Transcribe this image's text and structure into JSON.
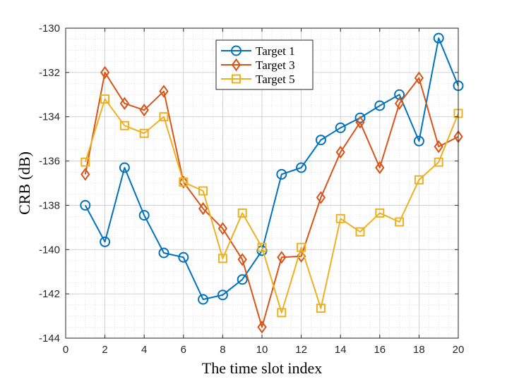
{
  "chart_data": {
    "type": "line",
    "title": "",
    "xlabel": "The time slot index",
    "ylabel": "CRB (dB)",
    "xlim": [
      0,
      20
    ],
    "ylim": [
      -144,
      -130
    ],
    "xticks": [
      0,
      2,
      4,
      6,
      8,
      10,
      12,
      14,
      16,
      18,
      20
    ],
    "yticks": [
      -144,
      -142,
      -140,
      -138,
      -136,
      -134,
      -132,
      -130
    ],
    "grid": true,
    "minor_grid": true,
    "legend_position": "top-center",
    "x": [
      1,
      2,
      3,
      4,
      5,
      6,
      7,
      8,
      9,
      10,
      11,
      12,
      13,
      14,
      15,
      16,
      17,
      18,
      19,
      20
    ],
    "series": [
      {
        "name": "Target 1",
        "color": "#0072BD",
        "marker": "circle",
        "values": [
          -138.0,
          -139.65,
          -136.3,
          -138.45,
          -140.15,
          -140.35,
          -142.25,
          -142.05,
          -141.35,
          -140.05,
          -136.6,
          -136.3,
          -135.05,
          -134.5,
          -134.05,
          -133.5,
          -133.0,
          -135.1,
          -130.45,
          -132.6
        ]
      },
      {
        "name": "Target 3",
        "color": "#D95319",
        "marker": "diamond",
        "values": [
          -136.6,
          -132.0,
          -133.4,
          -133.7,
          -132.85,
          -136.95,
          -138.15,
          -139.05,
          -140.45,
          -143.5,
          -140.35,
          -140.3,
          -137.65,
          -135.6,
          -134.25,
          -136.3,
          -133.4,
          -132.25,
          -135.35,
          -134.9
        ]
      },
      {
        "name": "Target 5",
        "color": "#EDB120",
        "marker": "square",
        "values": [
          -136.05,
          -133.2,
          -134.4,
          -134.75,
          -134.0,
          -136.95,
          -137.35,
          -140.4,
          -138.35,
          -139.9,
          -142.85,
          -139.9,
          -142.65,
          -138.6,
          -139.2,
          -138.35,
          -138.75,
          -136.85,
          -136.05,
          -133.85
        ]
      }
    ]
  }
}
